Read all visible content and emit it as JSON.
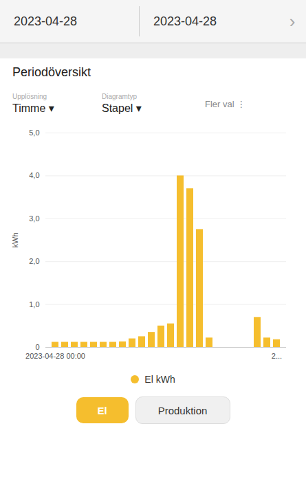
{
  "chart_data": {
    "type": "bar",
    "title": "Periodöversikt",
    "categories": [
      "2023-04-28 00:00",
      null,
      null,
      null,
      null,
      null,
      null,
      null,
      null,
      null,
      null,
      null,
      null,
      null,
      null,
      null,
      null,
      null,
      null,
      null,
      null,
      null,
      null,
      "2..."
    ],
    "series": [
      {
        "name": "El kWh",
        "color": "#F5BE2E",
        "values": [
          0.12,
          0.12,
          0.12,
          0.12,
          0.12,
          0.12,
          0.12,
          0.13,
          0.2,
          0.25,
          0.35,
          0.5,
          0.55,
          4.0,
          3.7,
          2.75,
          0.22,
          0.0,
          0.0,
          0.0,
          0.0,
          0.7,
          0.22,
          0.18
        ]
      }
    ],
    "y_label": "kWh",
    "ylim": [
      0,
      5.0
    ],
    "yticks": [
      0,
      {
        "value": 1.0,
        "label": "1,0"
      },
      {
        "value": 2.0,
        "label": "2,0"
      },
      {
        "value": 3.0,
        "label": "3,0"
      },
      {
        "value": 4.0,
        "label": "4,0"
      },
      {
        "value": 5.0,
        "label": "5,0"
      }
    ],
    "grid": true,
    "legend": "bottom",
    "annotations": [
      "2023-04-28",
      "2023-04-28",
      "›",
      "Upplösning",
      "Diagramtyp",
      "Fler val ⋮",
      "Timme ▾",
      "Stapel ▾",
      "El",
      "Produktion"
    ]
  }
}
